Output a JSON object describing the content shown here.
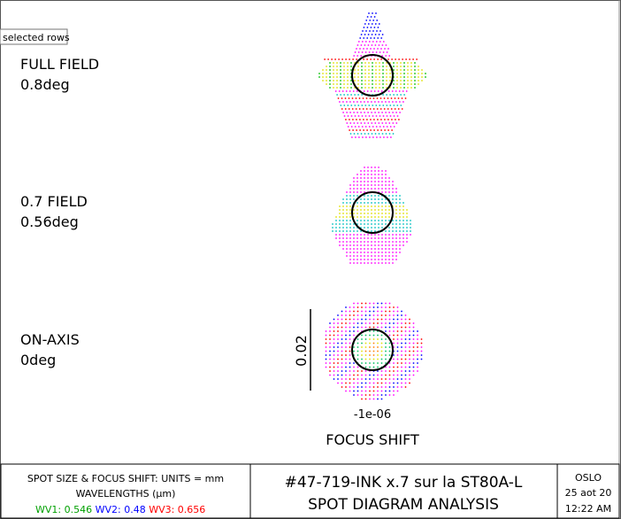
{
  "tooltip": "selected rows",
  "fields": [
    {
      "name": "FULL FIELD",
      "angle": "0.8deg"
    },
    {
      "name": "0.7 FIELD",
      "angle": "0.56deg"
    },
    {
      "name": "ON-AXIS",
      "angle": "0deg"
    }
  ],
  "scale_label": "0.02",
  "focus_value": "-1e-06",
  "focus_title": "FOCUS SHIFT",
  "footer": {
    "units": "SPOT SIZE & FOCUS SHIFT: UNITS = mm",
    "wavelengths_title": "WAVELENGTHS (µm)",
    "wavelengths": [
      {
        "text": "WV1: 0.546",
        "color": "#00a000"
      },
      {
        "text": "WV2: 0.48",
        "color": "#0000ff"
      },
      {
        "text": "WV3: 0.656",
        "color": "#ff0000"
      }
    ],
    "lens": "#47-719-INK x.7 sur la ST80A-L",
    "analysis": "SPOT DIAGRAM ANALYSIS",
    "program": "OSLO",
    "date": "25 aot 20",
    "time": "12:22 AM"
  }
}
